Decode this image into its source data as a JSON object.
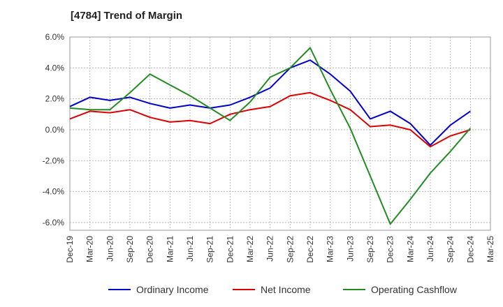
{
  "title": "[4784]  Trend of Margin",
  "chart_data": {
    "type": "line",
    "title": "[4784]  Trend of Margin",
    "xlabel": "",
    "ylabel": "",
    "x": [
      "Dec-19",
      "Mar-20",
      "Jun-20",
      "Sep-20",
      "Dec-20",
      "Mar-21",
      "Jun-21",
      "Sep-21",
      "Dec-21",
      "Mar-22",
      "Jun-22",
      "Sep-22",
      "Dec-22",
      "Mar-23",
      "Jun-23",
      "Sep-23",
      "Dec-23",
      "Mar-24",
      "Jun-24",
      "Sep-24",
      "Dec-24",
      "Mar-25"
    ],
    "y_ticks": [
      "6.0%",
      "4.0%",
      "2.0%",
      "0.0%",
      "-2.0%",
      "-4.0%",
      "-6.0%"
    ],
    "y_tick_values": [
      6,
      4,
      2,
      0,
      -2,
      -4,
      -6
    ],
    "ylim": [
      -6.5,
      6.0
    ],
    "grid": true,
    "legend_position": "bottom",
    "series": [
      {
        "name": "Ordinary Income",
        "color": "#0000cc",
        "values": [
          1.5,
          2.1,
          1.9,
          2.1,
          1.7,
          1.4,
          1.6,
          1.4,
          1.6,
          2.1,
          2.7,
          4.0,
          4.5,
          3.6,
          2.5,
          0.7,
          1.2,
          0.4,
          -1.0,
          0.3,
          1.2,
          null
        ]
      },
      {
        "name": "Net Income",
        "color": "#dd0000",
        "values": [
          0.7,
          1.2,
          1.1,
          1.3,
          0.8,
          0.5,
          0.6,
          0.4,
          1.0,
          1.3,
          1.5,
          2.2,
          2.4,
          1.9,
          1.3,
          0.2,
          0.3,
          0.0,
          -1.1,
          -0.4,
          0.0,
          null
        ]
      },
      {
        "name": "Operating Cashflow",
        "color": "#228b22",
        "values": [
          1.4,
          1.3,
          1.3,
          2.4,
          3.6,
          2.9,
          2.2,
          1.4,
          0.6,
          1.8,
          3.4,
          4.0,
          5.3,
          2.6,
          0.1,
          -3.0,
          -6.1,
          -4.5,
          -2.8,
          -1.4,
          0.1,
          null
        ]
      }
    ]
  }
}
